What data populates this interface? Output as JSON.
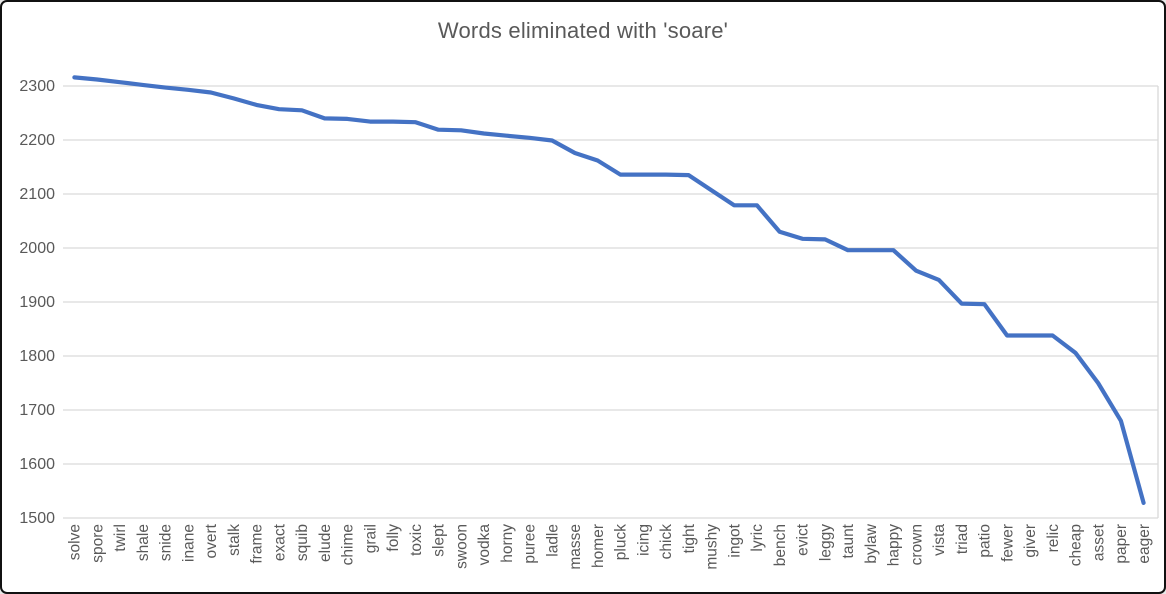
{
  "chart_data": {
    "type": "line",
    "title": "Words eliminated with 'soare'",
    "categories": [
      "solve",
      "spore",
      "twirl",
      "shale",
      "snide",
      "inane",
      "overt",
      "stalk",
      "frame",
      "exact",
      "squib",
      "elude",
      "chime",
      "grail",
      "folly",
      "toxic",
      "slept",
      "swoon",
      "vodka",
      "horny",
      "puree",
      "ladle",
      "masse",
      "homer",
      "pluck",
      "icing",
      "chick",
      "tight",
      "mushy",
      "ingot",
      "lyric",
      "bench",
      "evict",
      "leggy",
      "taunt",
      "bylaw",
      "happy",
      "crown",
      "vista",
      "triad",
      "patio",
      "fewer",
      "giver",
      "relic",
      "cheap",
      "asset",
      "paper",
      "eager"
    ],
    "values": [
      2316,
      2312,
      2307,
      2302,
      2297,
      2293,
      2288,
      2277,
      2265,
      2257,
      2255,
      2240,
      2239,
      2234,
      2234,
      2233,
      2219,
      2218,
      2212,
      2208,
      2204,
      2199,
      2176,
      2162,
      2136,
      2136,
      2136,
      2135,
      2107,
      2079,
      2079,
      2030,
      2017,
      2016,
      1996,
      1996,
      1996,
      1958,
      1941,
      1897,
      1896,
      1838,
      1838,
      1838,
      1806,
      1750,
      1680,
      1528
    ],
    "xlabel": "",
    "ylabel": "",
    "ylim": [
      1500,
      2350
    ],
    "y_ticks": [
      1500,
      1600,
      1700,
      1800,
      1900,
      2000,
      2100,
      2200,
      2300
    ],
    "grid": true,
    "legend": false,
    "x_tick_rotation": 90,
    "colors": {
      "line": "#4472C4",
      "gridline": "#D9D9D9",
      "axis_text": "#595959",
      "title_text": "#595959",
      "background": "#FFFFFF",
      "frame": "#111111"
    }
  }
}
